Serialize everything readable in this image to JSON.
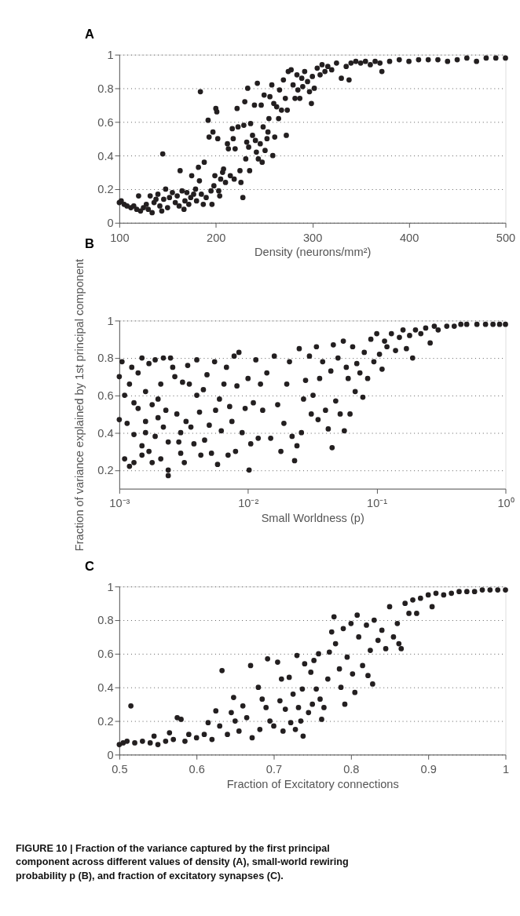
{
  "chart_data": [
    {
      "type": "scatter",
      "title": "A",
      "xlabel": "Density (neurons/mm²)",
      "xlim": [
        100,
        500
      ],
      "xticks": [
        100,
        200,
        300,
        400,
        500
      ],
      "ylim": [
        0,
        1
      ],
      "yticks": [
        0,
        0.2,
        0.4,
        0.6,
        0.8,
        1
      ],
      "grid": "y",
      "marker": "circle",
      "series": [
        {
          "color": "#231f20",
          "x": [
            100,
            102,
            105,
            108,
            112,
            115,
            118,
            120,
            122,
            125,
            128,
            130,
            132,
            134,
            136,
            138,
            140,
            142,
            144,
            145,
            146,
            148,
            150,
            152,
            155,
            158,
            160,
            162,
            163,
            165,
            167,
            168,
            170,
            172,
            174,
            175,
            177,
            179,
            180,
            182,
            183,
            184,
            185,
            187,
            188,
            190,
            192,
            193,
            195,
            196,
            197,
            198,
            199,
            200,
            201,
            202,
            203,
            204,
            205,
            207,
            208,
            210,
            212,
            213,
            215,
            217,
            218,
            219,
            220,
            222,
            223,
            225,
            226,
            228,
            229,
            230,
            231,
            232,
            233,
            234,
            235,
            236,
            238,
            240,
            241,
            242,
            243,
            244,
            246,
            247,
            248,
            249,
            250,
            251,
            253,
            254,
            255,
            256,
            258,
            259,
            260,
            261,
            263,
            265,
            266,
            268,
            270,
            272,
            273,
            274,
            275,
            278,
            280,
            282,
            284,
            285,
            287,
            289,
            290,
            292,
            295,
            297,
            299,
            300,
            302,
            305,
            308,
            310,
            313,
            316,
            320,
            325,
            330,
            335,
            338,
            340,
            345,
            350,
            355,
            360,
            365,
            370,
            372,
            380,
            390,
            400,
            410,
            420,
            430,
            440,
            450,
            460,
            470,
            480,
            490,
            500
          ],
          "values": [
            0.12,
            0.13,
            0.11,
            0.1,
            0.09,
            0.1,
            0.08,
            0.16,
            0.07,
            0.09,
            0.11,
            0.08,
            0.16,
            0.06,
            0.12,
            0.14,
            0.17,
            0.1,
            0.07,
            0.41,
            0.14,
            0.2,
            0.09,
            0.15,
            0.18,
            0.12,
            0.16,
            0.1,
            0.31,
            0.19,
            0.08,
            0.13,
            0.18,
            0.11,
            0.15,
            0.28,
            0.17,
            0.2,
            0.13,
            0.33,
            0.25,
            0.78,
            0.17,
            0.11,
            0.36,
            0.15,
            0.61,
            0.51,
            0.19,
            0.11,
            0.54,
            0.22,
            0.28,
            0.68,
            0.66,
            0.5,
            0.19,
            0.16,
            0.26,
            0.3,
            0.32,
            0.24,
            0.47,
            0.44,
            0.28,
            0.56,
            0.5,
            0.26,
            0.44,
            0.68,
            0.57,
            0.31,
            0.24,
            0.15,
            0.58,
            0.72,
            0.38,
            0.48,
            0.8,
            0.45,
            0.31,
            0.59,
            0.52,
            0.7,
            0.49,
            0.42,
            0.83,
            0.38,
            0.47,
            0.7,
            0.36,
            0.57,
            0.76,
            0.43,
            0.5,
            0.54,
            0.62,
            0.75,
            0.82,
            0.4,
            0.71,
            0.51,
            0.69,
            0.62,
            0.79,
            0.67,
            0.85,
            0.74,
            0.52,
            0.67,
            0.9,
            0.91,
            0.82,
            0.74,
            0.88,
            0.79,
            0.74,
            0.86,
            0.81,
            0.9,
            0.84,
            0.78,
            0.71,
            0.87,
            0.8,
            0.92,
            0.88,
            0.94,
            0.9,
            0.93,
            0.91,
            0.95,
            0.86,
            0.93,
            0.85,
            0.95,
            0.96,
            0.95,
            0.96,
            0.94,
            0.96,
            0.95,
            0.9,
            0.96,
            0.97,
            0.96,
            0.97,
            0.97,
            0.97,
            0.96,
            0.97,
            0.98,
            0.96,
            0.98,
            0.98,
            0.98
          ]
        }
      ]
    },
    {
      "type": "scatter",
      "title": "B",
      "xlabel": "Small Worldness (p)",
      "ylabel": "Fraction of variance explained by 1st principal component",
      "log": "x",
      "xlim": [
        0.001,
        1
      ],
      "xticks": [
        {
          "value": 0.001,
          "label": "10⁻³"
        },
        {
          "value": 0.01,
          "label": "10⁻²"
        },
        {
          "value": 0.1,
          "label": "10⁻¹"
        },
        {
          "value": 1,
          "label": "10⁰"
        }
      ],
      "ylim": [
        0.1,
        1
      ],
      "yticks": [
        0.2,
        0.4,
        0.6,
        0.8,
        1
      ],
      "grid": "y",
      "marker": "circle",
      "series": [
        {
          "color": "#231f20",
          "x": [
            0.001,
            0.001,
            0.00105,
            0.0011,
            0.0011,
            0.00115,
            0.0012,
            0.0012,
            0.00125,
            0.0013,
            0.0013,
            0.0013,
            0.0014,
            0.0014,
            0.0015,
            0.0015,
            0.0015,
            0.0016,
            0.0016,
            0.0016,
            0.0017,
            0.0017,
            0.0018,
            0.0018,
            0.0019,
            0.0019,
            0.002,
            0.002,
            0.0021,
            0.0021,
            0.0022,
            0.0022,
            0.0023,
            0.0024,
            0.0024,
            0.0024,
            0.0025,
            0.0026,
            0.0027,
            0.0028,
            0.0029,
            0.003,
            0.003,
            0.0031,
            0.0032,
            0.0033,
            0.0034,
            0.0035,
            0.0036,
            0.0038,
            0.004,
            0.004,
            0.0042,
            0.0043,
            0.0045,
            0.0046,
            0.0048,
            0.005,
            0.0052,
            0.0055,
            0.0056,
            0.0058,
            0.006,
            0.0062,
            0.0065,
            0.0068,
            0.007,
            0.0072,
            0.0075,
            0.0078,
            0.008,
            0.0082,
            0.0085,
            0.009,
            0.0095,
            0.01,
            0.0102,
            0.0105,
            0.011,
            0.0115,
            0.012,
            0.0125,
            0.013,
            0.014,
            0.015,
            0.016,
            0.017,
            0.018,
            0.019,
            0.02,
            0.021,
            0.022,
            0.023,
            0.024,
            0.025,
            0.026,
            0.027,
            0.028,
            0.03,
            0.031,
            0.032,
            0.034,
            0.035,
            0.036,
            0.038,
            0.04,
            0.042,
            0.044,
            0.045,
            0.046,
            0.048,
            0.05,
            0.052,
            0.055,
            0.056,
            0.058,
            0.06,
            0.062,
            0.065,
            0.068,
            0.07,
            0.074,
            0.078,
            0.08,
            0.085,
            0.09,
            0.095,
            0.1,
            0.105,
            0.11,
            0.115,
            0.12,
            0.13,
            0.14,
            0.15,
            0.16,
            0.17,
            0.18,
            0.19,
            0.2,
            0.22,
            0.24,
            0.26,
            0.28,
            0.3,
            0.35,
            0.4,
            0.45,
            0.5,
            0.6,
            0.7,
            0.8,
            0.9,
            1.0
          ],
          "values": [
            0.7,
            0.47,
            0.78,
            0.6,
            0.26,
            0.45,
            0.22,
            0.66,
            0.75,
            0.56,
            0.39,
            0.24,
            0.72,
            0.53,
            0.8,
            0.28,
            0.33,
            0.46,
            0.4,
            0.62,
            0.77,
            0.3,
            0.24,
            0.55,
            0.38,
            0.79,
            0.58,
            0.48,
            0.66,
            0.26,
            0.8,
            0.43,
            0.52,
            0.35,
            0.2,
            0.17,
            0.8,
            0.75,
            0.7,
            0.5,
            0.35,
            0.29,
            0.4,
            0.67,
            0.24,
            0.46,
            0.76,
            0.66,
            0.43,
            0.34,
            0.79,
            0.6,
            0.51,
            0.28,
            0.63,
            0.36,
            0.71,
            0.44,
            0.29,
            0.78,
            0.52,
            0.23,
            0.58,
            0.41,
            0.66,
            0.75,
            0.28,
            0.54,
            0.46,
            0.81,
            0.3,
            0.65,
            0.83,
            0.4,
            0.53,
            0.69,
            0.2,
            0.34,
            0.56,
            0.79,
            0.37,
            0.66,
            0.52,
            0.72,
            0.37,
            0.81,
            0.55,
            0.3,
            0.45,
            0.66,
            0.78,
            0.38,
            0.25,
            0.33,
            0.85,
            0.4,
            0.58,
            0.68,
            0.81,
            0.5,
            0.6,
            0.86,
            0.47,
            0.69,
            0.78,
            0.52,
            0.42,
            0.73,
            0.32,
            0.87,
            0.57,
            0.8,
            0.5,
            0.89,
            0.41,
            0.75,
            0.69,
            0.5,
            0.86,
            0.62,
            0.77,
            0.72,
            0.59,
            0.83,
            0.69,
            0.9,
            0.78,
            0.93,
            0.82,
            0.74,
            0.89,
            0.86,
            0.93,
            0.84,
            0.91,
            0.95,
            0.85,
            0.92,
            0.8,
            0.95,
            0.93,
            0.96,
            0.88,
            0.97,
            0.95,
            0.97,
            0.97,
            0.98,
            0.98,
            0.98,
            0.98,
            0.98,
            0.98,
            0.98
          ]
        }
      ]
    },
    {
      "type": "scatter",
      "title": "C",
      "xlabel": "Fraction of Excitatory connections",
      "xlim": [
        0.5,
        1
      ],
      "xticks": [
        0.5,
        0.6,
        0.7,
        0.8,
        0.9,
        1
      ],
      "ylim": [
        0,
        1
      ],
      "yticks": [
        0,
        0.2,
        0.4,
        0.6,
        0.8,
        1
      ],
      "grid": "y",
      "marker": "circle",
      "annotations": [
        "FIGURE 10 | Fraction of the variance captured by the first principal component across different values of density (A), small-world rewiring probability p (B), and fraction of excitatory synapses (C)."
      ],
      "series": [
        {
          "color": "#231f20",
          "x": [
            0.5,
            0.505,
            0.51,
            0.515,
            0.52,
            0.53,
            0.54,
            0.545,
            0.55,
            0.56,
            0.565,
            0.57,
            0.575,
            0.58,
            0.585,
            0.59,
            0.6,
            0.61,
            0.615,
            0.62,
            0.625,
            0.63,
            0.633,
            0.64,
            0.645,
            0.648,
            0.65,
            0.655,
            0.66,
            0.665,
            0.67,
            0.672,
            0.68,
            0.682,
            0.685,
            0.69,
            0.692,
            0.695,
            0.7,
            0.705,
            0.708,
            0.71,
            0.712,
            0.715,
            0.72,
            0.722,
            0.725,
            0.728,
            0.73,
            0.732,
            0.735,
            0.737,
            0.738,
            0.74,
            0.745,
            0.748,
            0.75,
            0.752,
            0.755,
            0.758,
            0.76,
            0.762,
            0.765,
            0.77,
            0.772,
            0.775,
            0.778,
            0.78,
            0.785,
            0.787,
            0.79,
            0.792,
            0.795,
            0.8,
            0.802,
            0.805,
            0.808,
            0.81,
            0.815,
            0.82,
            0.822,
            0.825,
            0.828,
            0.83,
            0.835,
            0.84,
            0.845,
            0.85,
            0.855,
            0.86,
            0.862,
            0.865,
            0.87,
            0.875,
            0.88,
            0.885,
            0.89,
            0.9,
            0.905,
            0.91,
            0.92,
            0.93,
            0.94,
            0.95,
            0.96,
            0.97,
            0.98,
            0.99,
            1.0
          ],
          "values": [
            0.06,
            0.07,
            0.08,
            0.29,
            0.07,
            0.08,
            0.07,
            0.11,
            0.06,
            0.08,
            0.13,
            0.09,
            0.22,
            0.21,
            0.08,
            0.12,
            0.1,
            0.12,
            0.19,
            0.09,
            0.26,
            0.17,
            0.5,
            0.12,
            0.25,
            0.34,
            0.2,
            0.14,
            0.29,
            0.22,
            0.53,
            0.1,
            0.4,
            0.15,
            0.33,
            0.28,
            0.57,
            0.2,
            0.17,
            0.55,
            0.32,
            0.45,
            0.14,
            0.27,
            0.46,
            0.19,
            0.36,
            0.15,
            0.59,
            0.28,
            0.2,
            0.39,
            0.11,
            0.54,
            0.25,
            0.49,
            0.3,
            0.56,
            0.39,
            0.6,
            0.33,
            0.21,
            0.28,
            0.45,
            0.61,
            0.73,
            0.82,
            0.66,
            0.51,
            0.4,
            0.75,
            0.3,
            0.58,
            0.78,
            0.48,
            0.37,
            0.83,
            0.7,
            0.53,
            0.77,
            0.47,
            0.62,
            0.42,
            0.8,
            0.68,
            0.74,
            0.63,
            0.88,
            0.7,
            0.78,
            0.66,
            0.63,
            0.9,
            0.84,
            0.92,
            0.84,
            0.93,
            0.95,
            0.88,
            0.96,
            0.95,
            0.96,
            0.97,
            0.97,
            0.97,
            0.98,
            0.98,
            0.98,
            0.98
          ]
        }
      ]
    }
  ]
}
